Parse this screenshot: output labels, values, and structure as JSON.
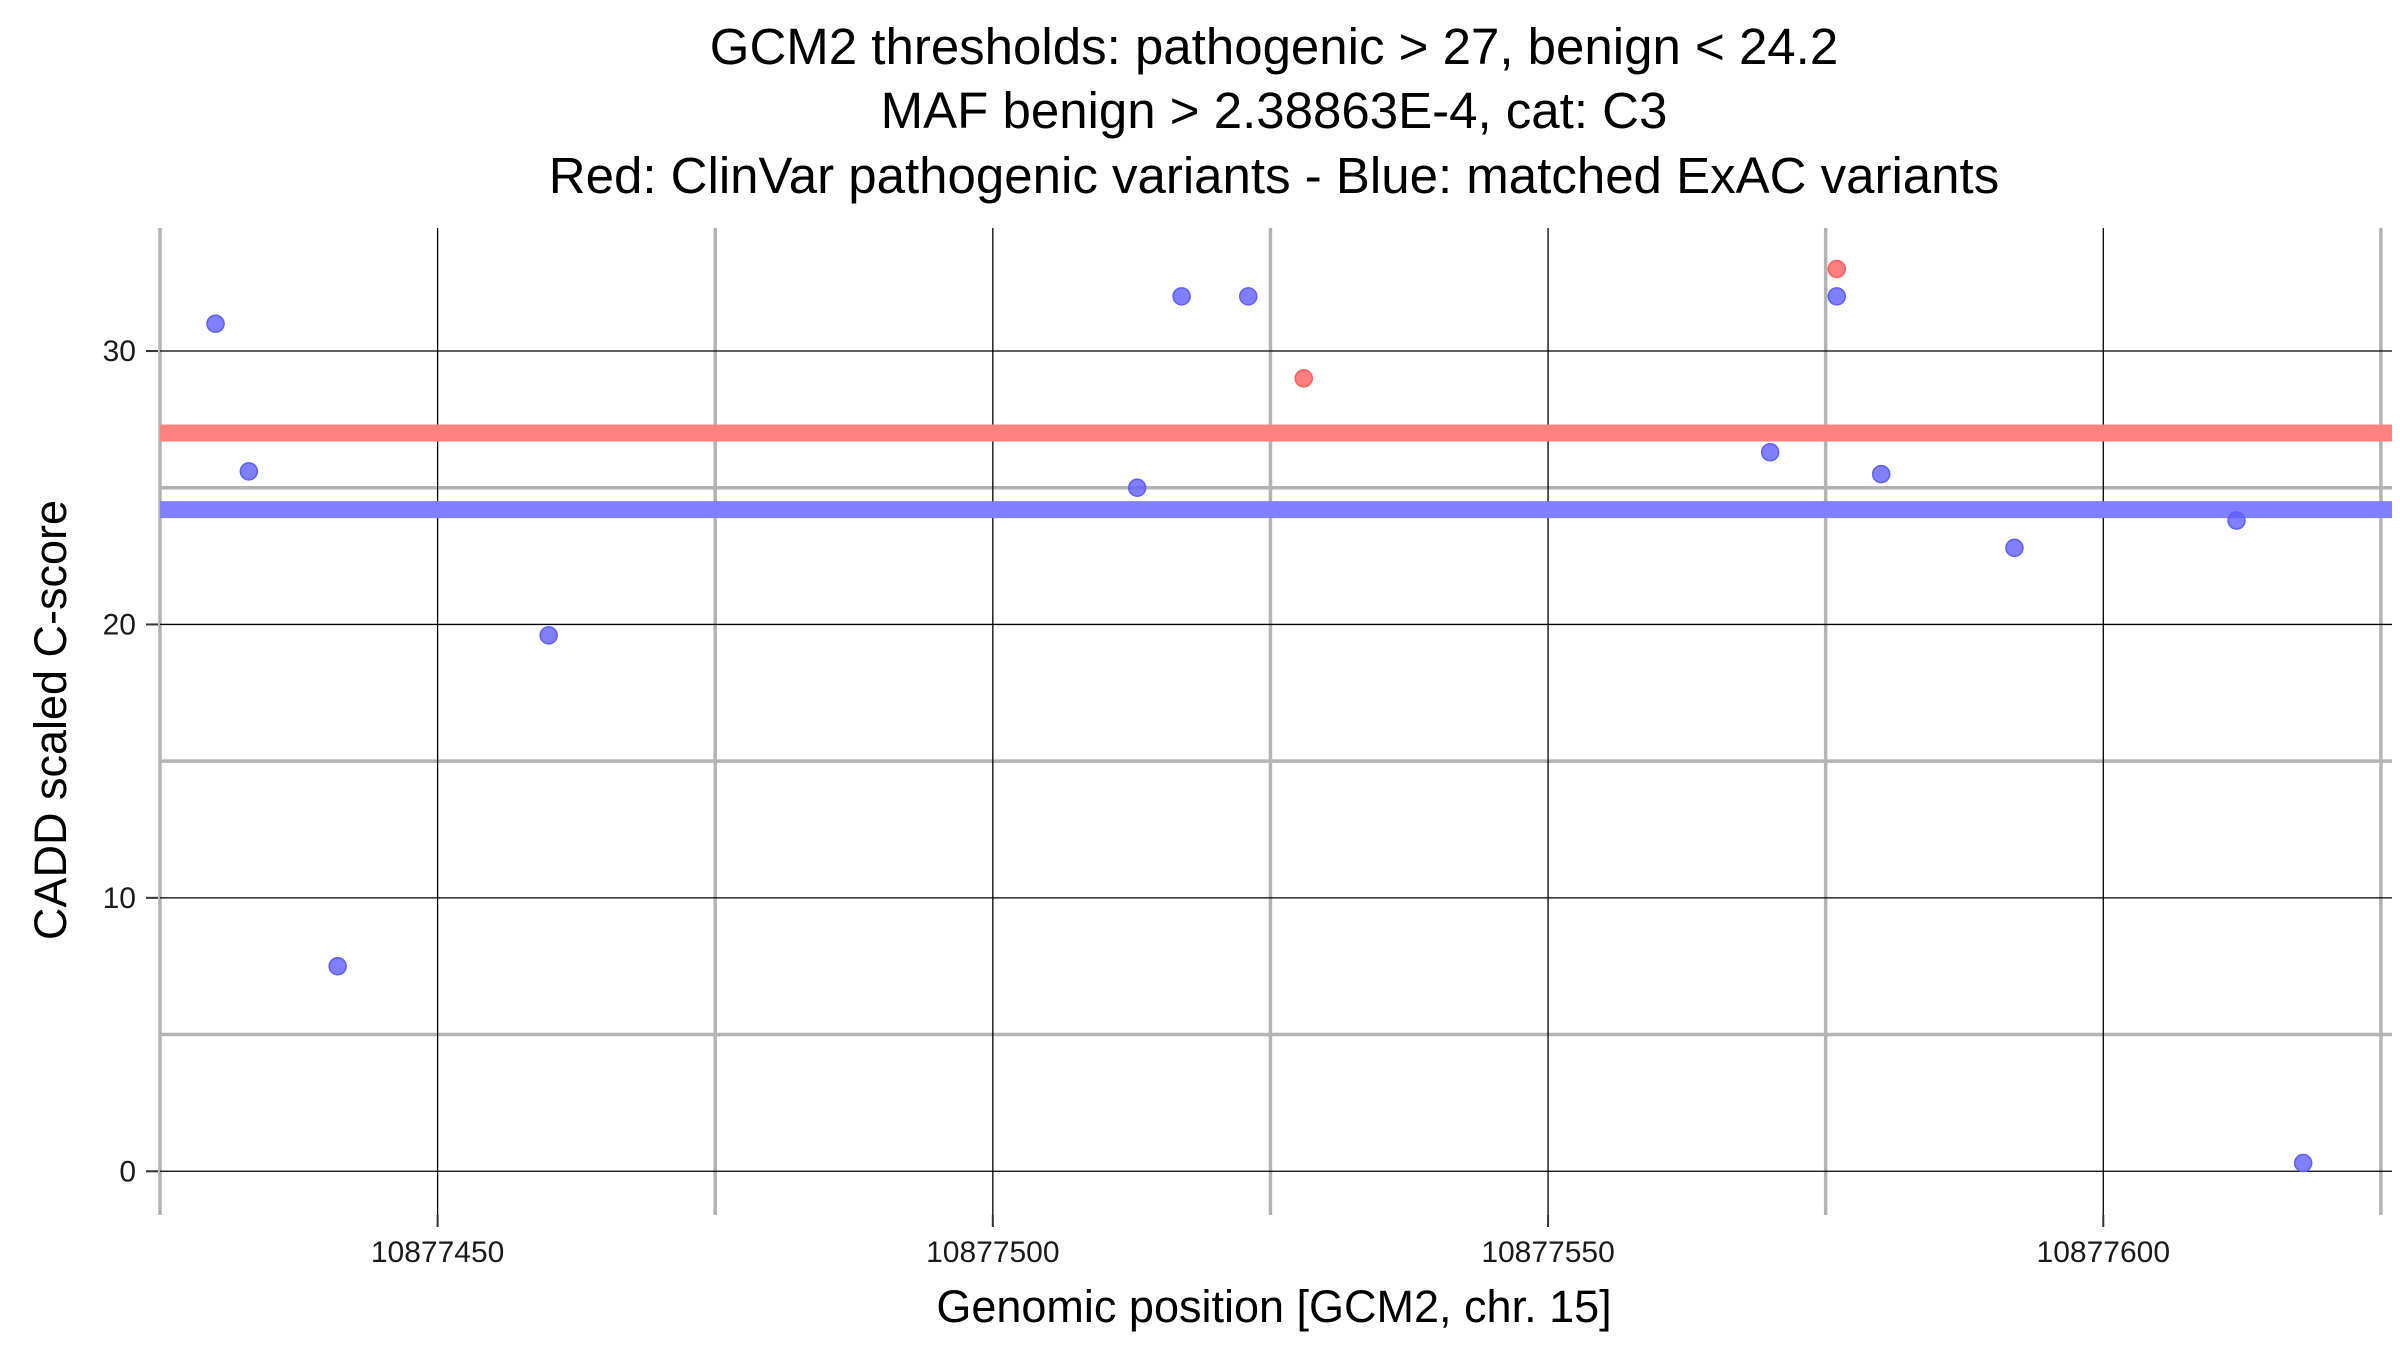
{
  "chart_data": {
    "type": "scatter",
    "title": [
      "GCM2 thresholds: pathogenic > 27, benign < 24.2",
      "MAF benign > 2.38863E-4, cat: C3",
      "Red: ClinVar pathogenic variants - Blue: matched ExAC variants"
    ],
    "xlabel": "Genomic position [GCM2, chr. 15]",
    "ylabel": "CADD scaled C-score",
    "xlim": [
      10877425,
      10877626
    ],
    "ylim": [
      -1.6,
      34.5
    ],
    "x_major_ticks": [
      10877450,
      10877500,
      10877550,
      10877600
    ],
    "x_tick_labels": [
      "10877450",
      "10877500",
      "10877550",
      "10877600"
    ],
    "x_minor_ticks": [
      10877425,
      10877475,
      10877525,
      10877575,
      10877625
    ],
    "y_major_ticks": [
      0,
      10,
      20,
      30
    ],
    "y_tick_labels": [
      "0",
      "10",
      "20",
      "30"
    ],
    "y_minor_ticks": [
      5,
      15,
      25
    ],
    "thresholds": [
      {
        "name": "pathogenic",
        "value": 27,
        "color": "#ff8080"
      },
      {
        "name": "benign",
        "value": 24.2,
        "color": "#8080ff"
      }
    ],
    "series": [
      {
        "name": "ClinVar pathogenic variants",
        "color": "#ff5f5f",
        "points": [
          {
            "x": 10877528,
            "y": 29
          },
          {
            "x": 10877576,
            "y": 33
          }
        ]
      },
      {
        "name": "matched ExAC variants",
        "color": "#5f5fff",
        "points": [
          {
            "x": 10877430,
            "y": 31
          },
          {
            "x": 10877433,
            "y": 25.6
          },
          {
            "x": 10877441,
            "y": 7.5
          },
          {
            "x": 10877460,
            "y": 19.6
          },
          {
            "x": 10877513,
            "y": 25
          },
          {
            "x": 10877517,
            "y": 32
          },
          {
            "x": 10877523,
            "y": 32
          },
          {
            "x": 10877570,
            "y": 26.3
          },
          {
            "x": 10877576,
            "y": 32
          },
          {
            "x": 10877580,
            "y": 25.5
          },
          {
            "x": 10877592,
            "y": 22.8
          },
          {
            "x": 10877612,
            "y": 23.8
          },
          {
            "x": 10877618,
            "y": 0.3
          }
        ]
      }
    ]
  }
}
